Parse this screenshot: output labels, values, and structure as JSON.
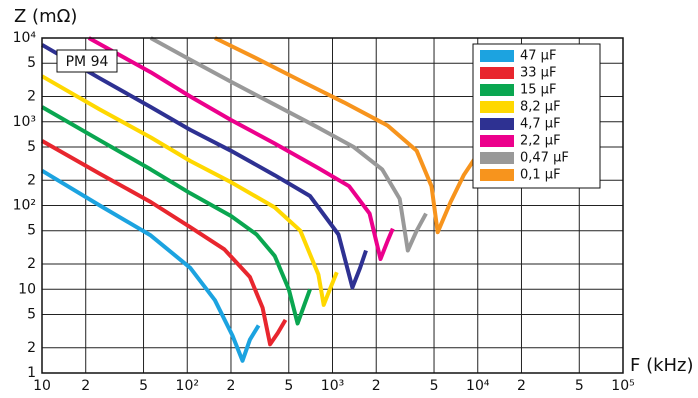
{
  "chart_data": {
    "type": "line",
    "annotation": "PM 94",
    "y_label": "Z (mΩ)",
    "x_label": "F (kHz)",
    "log_x": true,
    "log_y": true,
    "grid": true,
    "legend_position": "upper right",
    "xlim": [
      10,
      100000
    ],
    "ylim": [
      1,
      10000
    ],
    "xticks": [
      10,
      {
        "value": 20,
        "label": "2"
      },
      {
        "value": 50,
        "label": "5"
      },
      {
        "value": 100,
        "label": "10²"
      },
      {
        "value": 200,
        "label": "2"
      },
      {
        "value": 500,
        "label": "5"
      },
      {
        "value": 1000,
        "label": "10³"
      },
      {
        "value": 2000,
        "label": "2"
      },
      {
        "value": 5000,
        "label": "5"
      },
      {
        "value": 10000,
        "label": "10⁴"
      },
      {
        "value": 20000,
        "label": "2"
      },
      {
        "value": 50000,
        "label": "5"
      },
      {
        "value": 100000,
        "label": "10⁵"
      }
    ],
    "yticks": [
      1,
      2,
      5,
      10,
      {
        "value": 20,
        "label": "2"
      },
      {
        "value": 50,
        "label": "5"
      },
      {
        "value": 100,
        "label": "10²"
      },
      {
        "value": 200,
        "label": "2"
      },
      {
        "value": 500,
        "label": "5"
      },
      {
        "value": 1000,
        "label": "10³"
      },
      {
        "value": 2000,
        "label": "2"
      },
      {
        "value": 5000,
        "label": "5"
      },
      {
        "value": 10000,
        "label": "10⁴"
      }
    ],
    "series": [
      {
        "name": "47 µF",
        "color": "#1ca3e0",
        "x": [
          10,
          25,
          56,
          105,
          155,
          205,
          240,
          270,
          310
        ],
        "values": [
          260,
          100,
          44,
          18,
          7.4,
          2.8,
          1.4,
          2.5,
          3.7
        ]
      },
      {
        "name": "33 µF",
        "color": "#e8262e",
        "x": [
          10,
          25,
          56,
          105,
          180,
          270,
          330,
          372,
          420,
          475
        ],
        "values": [
          590,
          240,
          110,
          55,
          30,
          14,
          6,
          2.2,
          3,
          4.3
        ]
      },
      {
        "name": "15 µF",
        "color": "#0aa650",
        "x": [
          10,
          25,
          56,
          105,
          200,
          300,
          400,
          500,
          575,
          640,
          700
        ],
        "values": [
          1500,
          600,
          270,
          140,
          75,
          45,
          25,
          10,
          3.9,
          6.5,
          10
        ]
      },
      {
        "name": "8,2 µF",
        "color": "#ffd800",
        "x": [
          10,
          25,
          56,
          105,
          200,
          400,
          600,
          800,
          870,
          960,
          1070
        ],
        "values": [
          3500,
          1400,
          650,
          340,
          190,
          95,
          50,
          15,
          6.5,
          10,
          16
        ]
      },
      {
        "name": "4,7 µF",
        "color": "#2e3192",
        "x": [
          10,
          25,
          56,
          105,
          200,
          400,
          700,
          1100,
          1370,
          1550,
          1700
        ],
        "values": [
          8300,
          3300,
          1500,
          800,
          450,
          230,
          130,
          45,
          10.5,
          18,
          29
        ]
      },
      {
        "name": "2,2 µF",
        "color": "#ec008c",
        "x": [
          21,
          56,
          105,
          200,
          400,
          800,
          1300,
          1800,
          2140,
          2400,
          2600
        ],
        "values": [
          10000,
          3900,
          2000,
          1050,
          550,
          280,
          170,
          80,
          23,
          38,
          53
        ]
      },
      {
        "name": "0,47 µF",
        "color": "#999999",
        "x": [
          56,
          105,
          200,
          400,
          800,
          1400,
          2200,
          2900,
          3300,
          3800,
          4400
        ],
        "values": [
          10000,
          5500,
          3000,
          1600,
          850,
          500,
          270,
          120,
          29,
          50,
          80
        ]
      },
      {
        "name": "0,1 µF",
        "color": "#f7941d",
        "x": [
          155,
          300,
          600,
          1200,
          2400,
          3800,
          4800,
          5300,
          6500,
          8000,
          9800
        ],
        "values": [
          10000,
          5700,
          3100,
          1700,
          900,
          450,
          170,
          48,
          110,
          230,
          390
        ]
      }
    ]
  }
}
